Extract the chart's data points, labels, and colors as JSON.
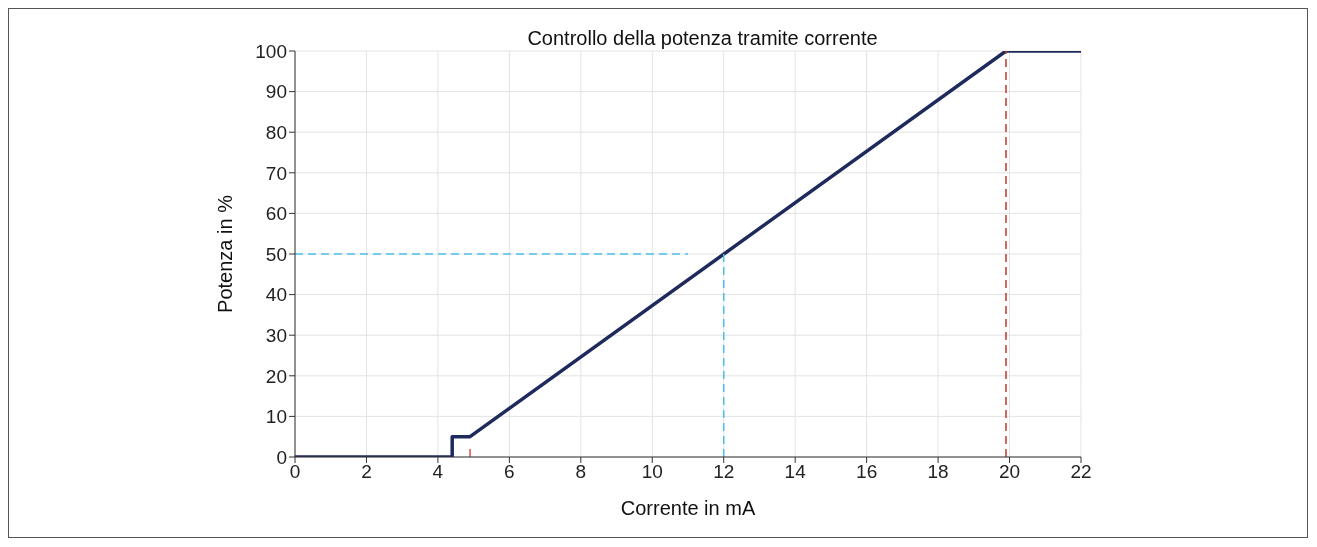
{
  "chart_data": {
    "type": "line",
    "title": "Controllo della potenza tramite corrente",
    "xlabel": "Corrente in mA",
    "ylabel": "Potenza in %",
    "xlim": [
      0,
      22
    ],
    "xticks": [
      0,
      2,
      4,
      6,
      8,
      10,
      12,
      14,
      16,
      18,
      20,
      22
    ],
    "ylim": [
      0,
      100
    ],
    "yticks": [
      0,
      10,
      20,
      30,
      40,
      50,
      60,
      70,
      80,
      90,
      100
    ],
    "grid": true,
    "legend": false,
    "marker": "none",
    "series": [
      {
        "color": "#1f2a5c",
        "line_style": "solid",
        "x": [
          0,
          4.4,
          4.4,
          4.9,
          19.9,
          22
        ],
        "values": [
          0,
          0,
          5,
          5,
          100,
          100
        ]
      },
      {
        "color": "#4dbeee",
        "line_style": "dashed",
        "x": [
          0,
          11
        ],
        "values": [
          50,
          50
        ]
      },
      {
        "color": "#4dbeee",
        "line_style": "dashed",
        "x": [
          12,
          12
        ],
        "values": [
          0,
          50
        ]
      },
      {
        "color": "#d9534f",
        "line_style": "dashed",
        "x": [
          4.9,
          4.9
        ],
        "values": [
          0,
          2.5
        ]
      },
      {
        "color": "#c0392b",
        "line_style": "dashed",
        "x": [
          19.9,
          19.9
        ],
        "values": [
          0,
          100
        ]
      }
    ]
  }
}
